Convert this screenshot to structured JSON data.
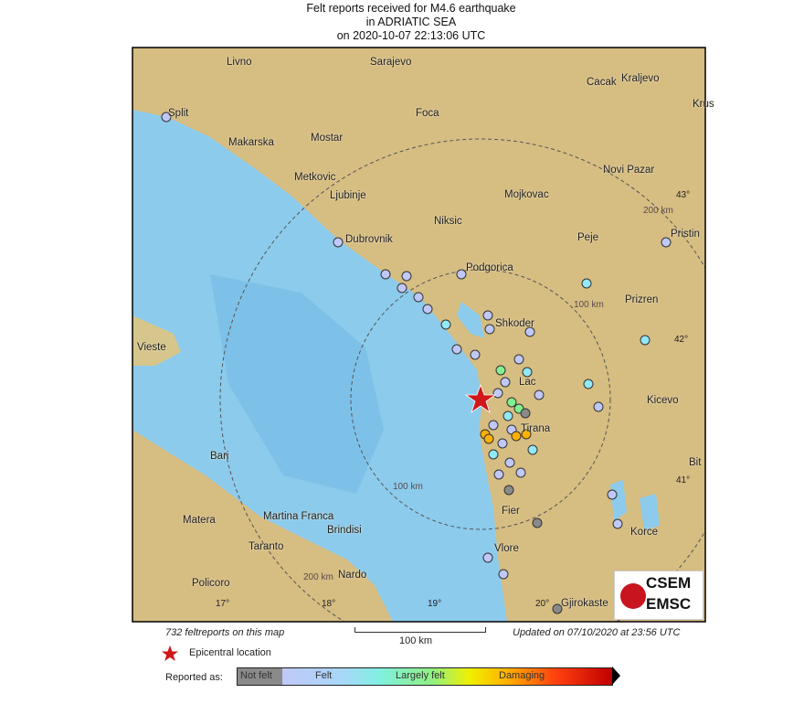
{
  "title": {
    "line1": "Felt reports received for M4.6 earthquake",
    "line2": "in ADRIATIC SEA",
    "line3": "on  2020-10-07 22:13:06 UTC"
  },
  "map": {
    "cities": [
      "Livno",
      "Sarajevo",
      "Cacak",
      "Kraljevo",
      "Split",
      "Foca",
      "Krus",
      "Makarska",
      "Mostar",
      "Novi Pazar",
      "Metkovic",
      "Ljubinje",
      "Mojkovac",
      "Dubrovnik",
      "Niksic",
      "Peje",
      "Pristin",
      "Podgorica",
      "Prizren",
      "Shkoder",
      "Vieste",
      "Lac",
      "Kicevo",
      "Tirana",
      "Bari",
      "Bit",
      "Fier",
      "Matera",
      "Martina Franca",
      "Brindisi",
      "Korce",
      "Taranto",
      "Vlore",
      "Policoro",
      "Nardo",
      "Gjirokaste"
    ],
    "degree_labels": [
      "43°",
      "42°",
      "41°",
      "17°",
      "18°",
      "19°",
      "20°"
    ],
    "distance_rings": [
      "100 km",
      "200 km",
      "100 km",
      "200 km"
    ],
    "colors": {
      "sea": "#8ccbec",
      "land": "#d9c28a",
      "not_felt": "#8a8a8a",
      "felt": "#c0c8f8",
      "largely_felt": "#80f090",
      "damaging": "#ffb000",
      "epicenter": "#d01818"
    }
  },
  "footer": {
    "report_count": "732 feltreports on this map",
    "updated": "Updated on 07/10/2020 at 23:56 UTC",
    "scale": "100 km",
    "epicenter_label": "Epicentral location",
    "reported_as": "Reported as:",
    "legend": [
      "Not felt",
      "Felt",
      "Largely felt",
      "Damaging"
    ]
  },
  "logo": {
    "line1": "CSEM",
    "line2": "EMSC"
  }
}
